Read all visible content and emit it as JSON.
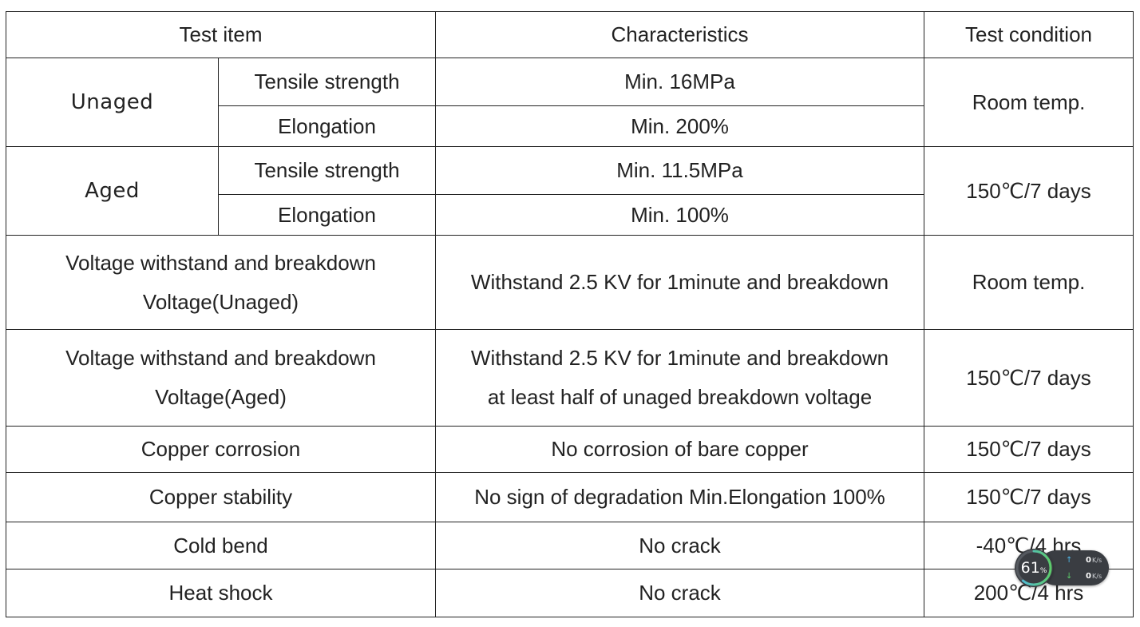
{
  "table": {
    "header": {
      "test_item": "Test item",
      "characteristics": "Characteristics",
      "test_condition": "Test condition"
    },
    "unaged": {
      "label": "Unaged",
      "tensile_label": "Tensile strength",
      "tensile_value": "Min. 16MPa",
      "elongation_label": "Elongation",
      "elongation_value": "Min. 200%",
      "condition": "Room temp."
    },
    "aged": {
      "label": "Aged",
      "tensile_label": "Tensile strength",
      "tensile_value": "Min. 11.5MPa",
      "elongation_label": "Elongation",
      "elongation_value": "Min. 100%",
      "condition": "150℃/7 days"
    },
    "voltage_unaged": {
      "item_line1": "Voltage withstand and breakdown",
      "item_line2": "Voltage(Unaged)",
      "characteristics": "Withstand 2.5 KV for 1minute and breakdown",
      "condition": "Room temp."
    },
    "voltage_aged": {
      "item_line1": "Voltage withstand and breakdown",
      "item_line2": "Voltage(Aged)",
      "char_line1": "Withstand 2.5 KV for 1minute and breakdown",
      "char_line2": "at least half of unaged breakdown voltage",
      "condition": "150℃/7 days"
    },
    "copper_corrosion": {
      "item": "Copper corrosion",
      "characteristics": "No corrosion of bare copper",
      "condition": "150℃/7 days"
    },
    "copper_stability": {
      "item": "Copper stability",
      "characteristics": "No sign of degradation Min.Elongation 100%",
      "condition": "150℃/7 days"
    },
    "cold_bend": {
      "item": "Cold bend",
      "characteristics": "No crack",
      "condition": "-40℃/4 hrs"
    },
    "heat_shock": {
      "item": "Heat shock",
      "characteristics": "No crack",
      "condition": "200℃/4 hrs"
    }
  },
  "net_widget": {
    "percent": "61",
    "percent_sign": "%",
    "percent_fraction": 0.61,
    "upload_value": "0",
    "upload_unit": "K/s",
    "download_value": "0",
    "download_unit": "K/s",
    "ring_color": "#4fb8e8",
    "ring_color_end": "#5ccc6a"
  }
}
